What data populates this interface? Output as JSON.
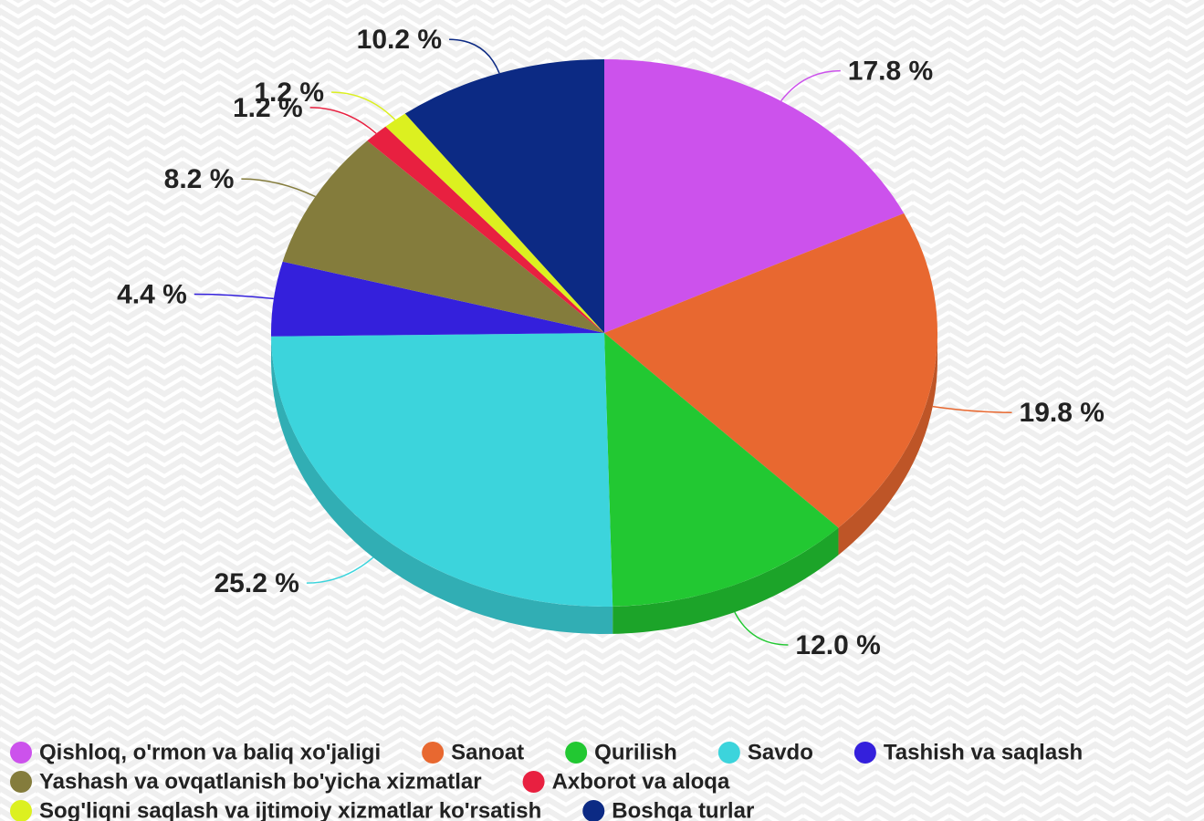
{
  "chart_data": {
    "type": "pie",
    "categories": [
      "Qishloq, o'rmon va baliq xo'jaligi",
      "Sanoat",
      "Qurilish",
      "Savdo",
      "Tashish va saqlash",
      "Yashash va ovqatlanish bo'yicha xizmatlar",
      "Axborot va aloqa",
      "Sog'liqni saqlash va ijtimoiy xizmatlar ko'rsatish",
      "Boshqa turlar"
    ],
    "values": [
      17.8,
      19.8,
      12.0,
      25.2,
      4.4,
      8.2,
      1.2,
      1.2,
      10.2
    ],
    "value_labels": [
      "17.8 %",
      "19.8 %",
      "12.0 %",
      "25.2 %",
      "4.4 %",
      "8.2 %",
      "1.2 %",
      "1.2 %",
      "10.2 %"
    ],
    "colors": [
      "#cc52ec",
      "#e86830",
      "#22c832",
      "#3cd4dc",
      "#3420dc",
      "#847c3c",
      "#e82040",
      "#dcf020",
      "#0c2a84"
    ],
    "legend": "bottom"
  }
}
